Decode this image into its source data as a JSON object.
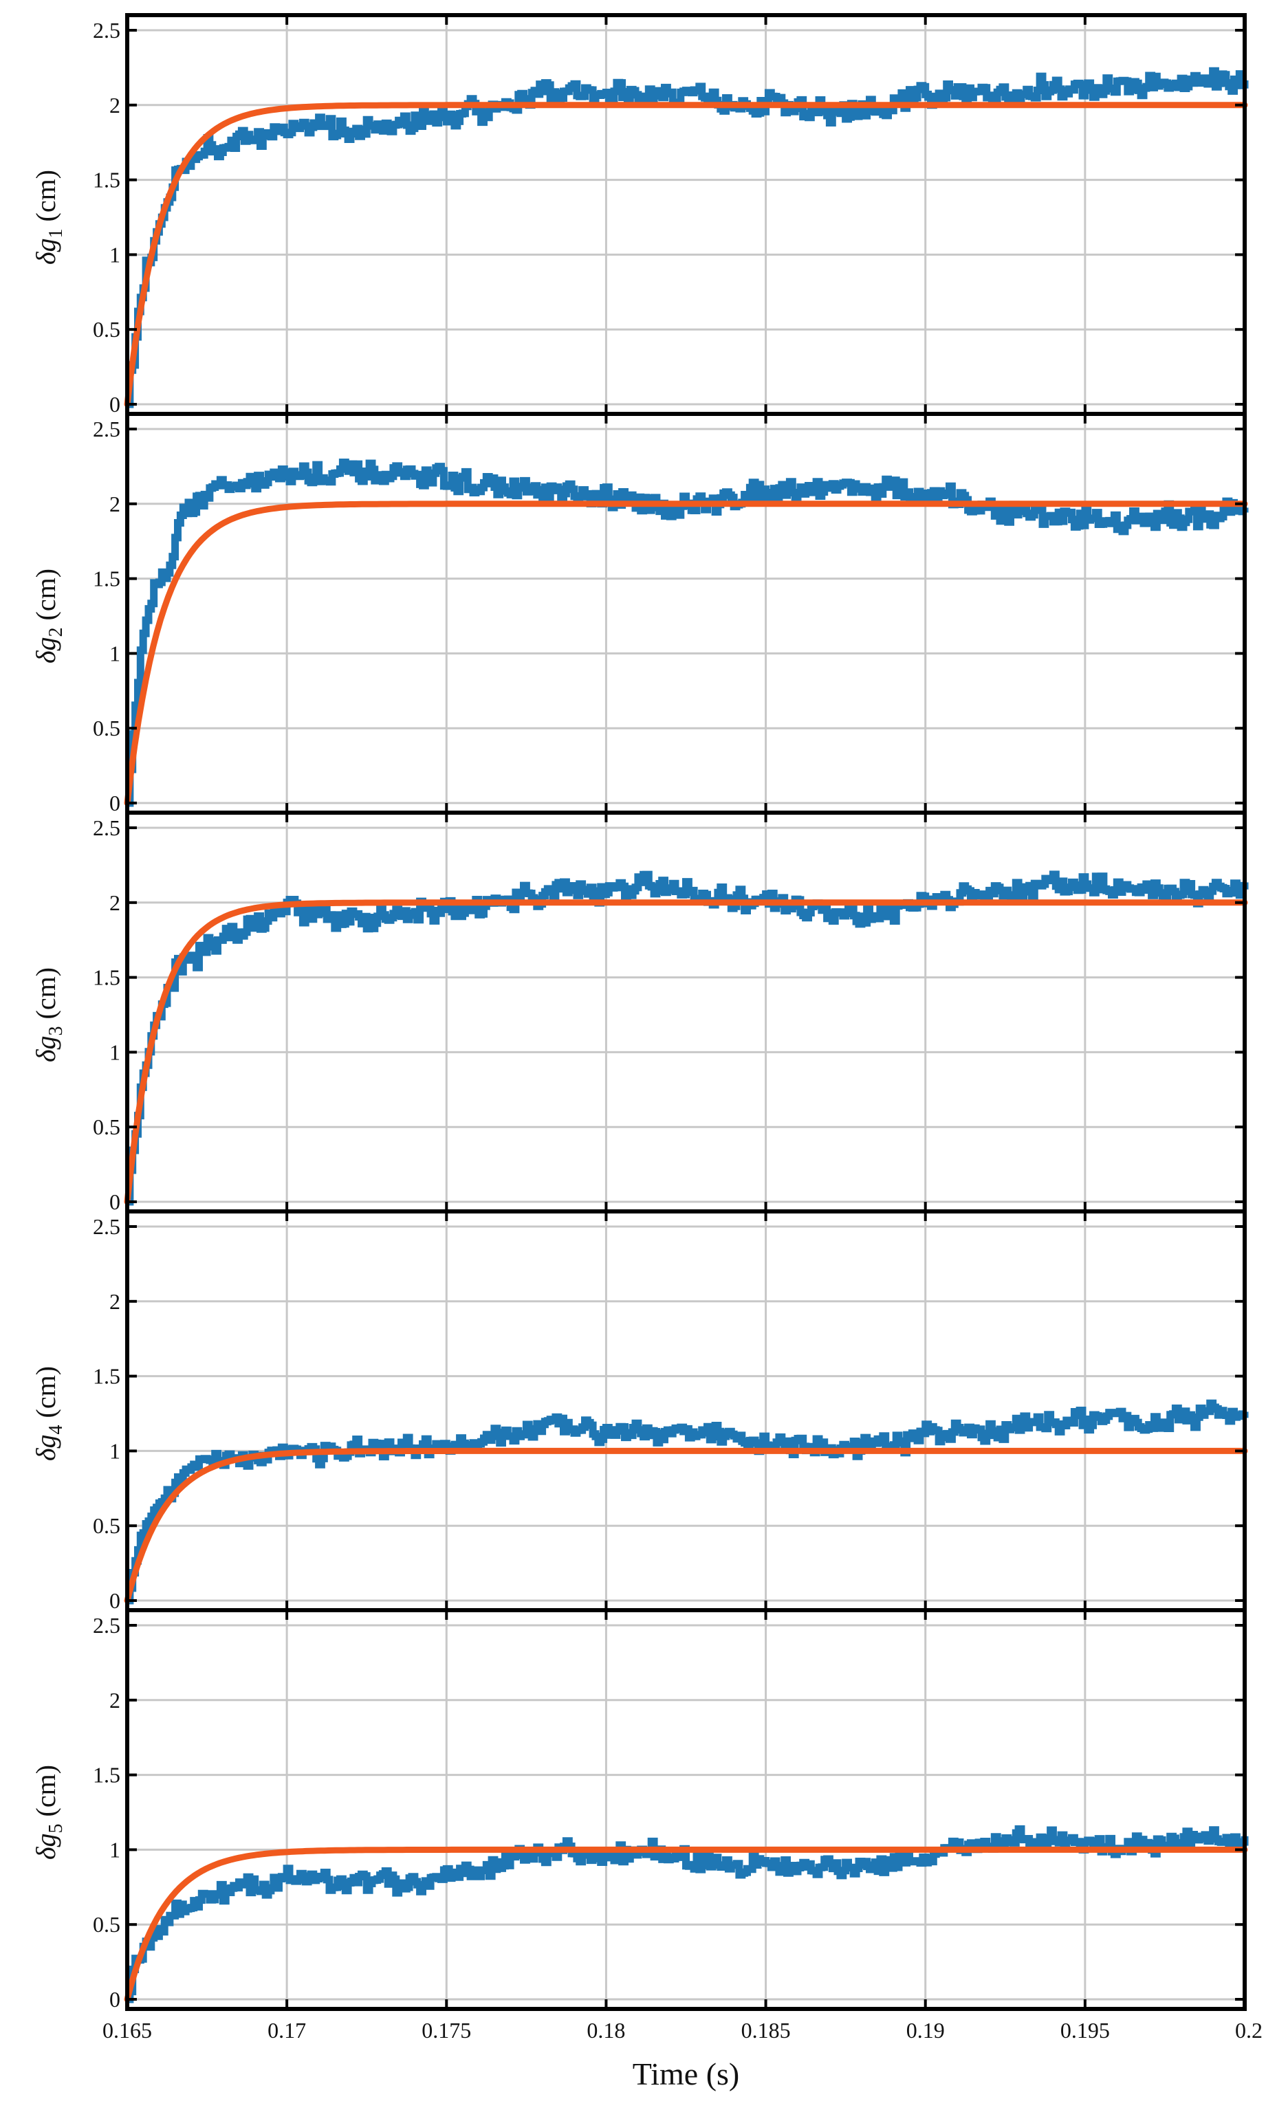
{
  "chart_data": {
    "type": "line",
    "layout": "5 vertically stacked subplots with shared x-axis",
    "xlabel": "Time (s)",
    "xlim": [
      0.165,
      0.2
    ],
    "x_ticks": [
      0.165,
      0.17,
      0.175,
      0.18,
      0.185,
      0.19,
      0.195,
      0.2
    ],
    "x_tick_labels": [
      "0.165",
      "0.17",
      "0.175",
      "0.18",
      "0.185",
      "0.19",
      "0.195",
      "0.2"
    ],
    "ylim": [
      0,
      2.5
    ],
    "y_ticks": [
      0,
      0.5,
      1,
      1.5,
      2,
      2.5
    ],
    "y_tick_labels": [
      "0",
      "0.5",
      "1",
      "1.5",
      "2",
      "2.5"
    ],
    "grid": true,
    "legend": "none",
    "colors": {
      "measured": "#1f77b4",
      "model": "#f05a1e"
    },
    "series_kinds": [
      "noisy step trace (blue)",
      "first-order rise curve (orange)"
    ],
    "subplots": [
      {
        "ylabel": "δg1 (cm)",
        "ylabel_main": "δg",
        "ylabel_sub": "1",
        "ylabel_unit": " (cm)",
        "model_final": 2.0,
        "time_constant": 0.0011,
        "measured_rise_tau": 0.0007,
        "measured_init_level": 1.6,
        "measured_segments": [
          [
            0.1665,
            1.55
          ],
          [
            0.1675,
            1.72
          ],
          [
            0.17,
            1.85
          ],
          [
            0.173,
            1.84
          ],
          [
            0.176,
            1.98
          ],
          [
            0.178,
            2.08
          ],
          [
            0.182,
            2.08
          ],
          [
            0.185,
            2.0
          ],
          [
            0.188,
            1.93
          ],
          [
            0.19,
            2.05
          ],
          [
            0.194,
            2.12
          ],
          [
            0.197,
            2.12
          ],
          [
            0.2,
            2.18
          ]
        ],
        "noise_amplitude": 0.09
      },
      {
        "ylabel": "δg2 (cm)",
        "ylabel_main": "δg",
        "ylabel_sub": "2",
        "ylabel_unit": " (cm)",
        "model_final": 2.0,
        "time_constant": 0.0011,
        "measured_rise_tau": 0.0005,
        "measured_init_level": 1.75,
        "measured_segments": [
          [
            0.1665,
            1.85
          ],
          [
            0.1675,
            2.1
          ],
          [
            0.17,
            2.2
          ],
          [
            0.174,
            2.18
          ],
          [
            0.177,
            2.1
          ],
          [
            0.18,
            2.02
          ],
          [
            0.183,
            1.98
          ],
          [
            0.185,
            2.1
          ],
          [
            0.188,
            2.12
          ],
          [
            0.19,
            2.05
          ],
          [
            0.193,
            1.93
          ],
          [
            0.197,
            1.88
          ],
          [
            0.2,
            1.97
          ]
        ],
        "noise_amplitude": 0.09
      },
      {
        "ylabel": "δg3 (cm)",
        "ylabel_main": "δg",
        "ylabel_sub": "3",
        "ylabel_unit": " (cm)",
        "model_final": 2.0,
        "time_constant": 0.001,
        "measured_rise_tau": 0.0007,
        "measured_init_level": 1.65,
        "measured_segments": [
          [
            0.1665,
            1.55
          ],
          [
            0.168,
            1.78
          ],
          [
            0.17,
            1.92
          ],
          [
            0.173,
            1.9
          ],
          [
            0.176,
            1.97
          ],
          [
            0.178,
            2.08
          ],
          [
            0.182,
            2.1
          ],
          [
            0.185,
            1.98
          ],
          [
            0.188,
            1.92
          ],
          [
            0.19,
            2.0
          ],
          [
            0.194,
            2.12
          ],
          [
            0.197,
            2.08
          ],
          [
            0.2,
            2.08
          ]
        ],
        "noise_amplitude": 0.09
      },
      {
        "ylabel": "δg4 (cm)",
        "ylabel_main": "δg",
        "ylabel_sub": "4",
        "ylabel_unit": " (cm)",
        "model_final": 1.0,
        "time_constant": 0.0012,
        "measured_rise_tau": 0.0005,
        "measured_init_level": 0.75,
        "measured_segments": [
          [
            0.1665,
            0.8
          ],
          [
            0.168,
            0.95
          ],
          [
            0.17,
            1.0
          ],
          [
            0.174,
            1.0
          ],
          [
            0.176,
            1.05
          ],
          [
            0.178,
            1.15
          ],
          [
            0.182,
            1.15
          ],
          [
            0.185,
            1.05
          ],
          [
            0.188,
            1.0
          ],
          [
            0.19,
            1.1
          ],
          [
            0.194,
            1.2
          ],
          [
            0.197,
            1.2
          ],
          [
            0.2,
            1.25
          ]
        ],
        "noise_amplitude": 0.08
      },
      {
        "ylabel": "δg5 (cm)",
        "ylabel_main": "δg",
        "ylabel_sub": "5",
        "ylabel_unit": " (cm)",
        "model_final": 1.0,
        "time_constant": 0.0012,
        "measured_rise_tau": 0.0005,
        "measured_init_level": 0.55,
        "measured_segments": [
          [
            0.1665,
            0.62
          ],
          [
            0.168,
            0.72
          ],
          [
            0.17,
            0.8
          ],
          [
            0.174,
            0.78
          ],
          [
            0.176,
            0.85
          ],
          [
            0.178,
            0.98
          ],
          [
            0.182,
            0.95
          ],
          [
            0.185,
            0.9
          ],
          [
            0.188,
            0.88
          ],
          [
            0.19,
            0.98
          ],
          [
            0.194,
            1.08
          ],
          [
            0.197,
            1.02
          ],
          [
            0.2,
            1.1
          ]
        ],
        "noise_amplitude": 0.08
      }
    ]
  }
}
